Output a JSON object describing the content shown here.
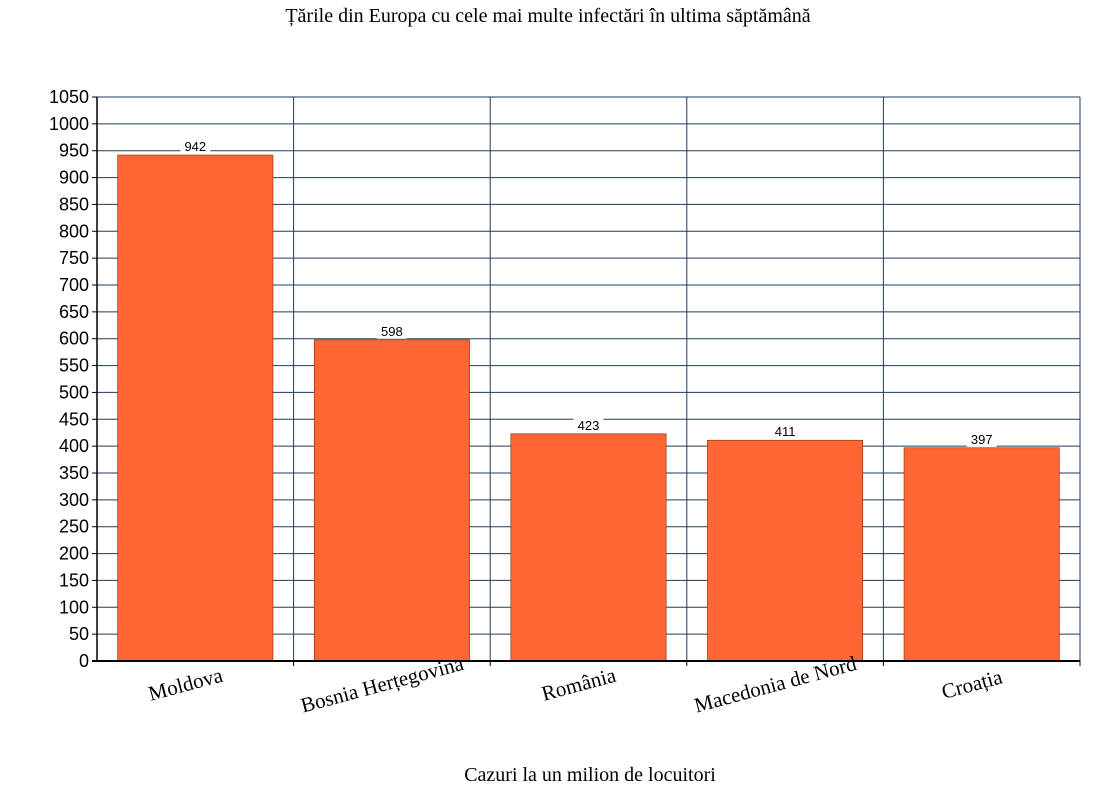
{
  "chart_data": {
    "type": "bar",
    "title": "Țările din Europa cu cele mai multe infectări în ultima săptămână",
    "xlabel": "Cazuri la un milion de locuitori",
    "ylabel": "",
    "categories": [
      "Moldova",
      "Bosnia Herțegovina",
      "România",
      "Macedonia de Nord",
      "Croația"
    ],
    "values": [
      942,
      598,
      423,
      411,
      397
    ],
    "data_labels": [
      "942",
      "598",
      "423",
      "411",
      "397"
    ],
    "ylim": [
      0,
      1050
    ],
    "yticks": [
      0,
      50,
      100,
      150,
      200,
      250,
      300,
      350,
      400,
      450,
      500,
      550,
      600,
      650,
      700,
      750,
      800,
      850,
      900,
      950,
      1000,
      1050
    ],
    "grid": true,
    "legend": "none",
    "bar_color": "#FF6633",
    "grid_color": "#1F3A5F"
  }
}
